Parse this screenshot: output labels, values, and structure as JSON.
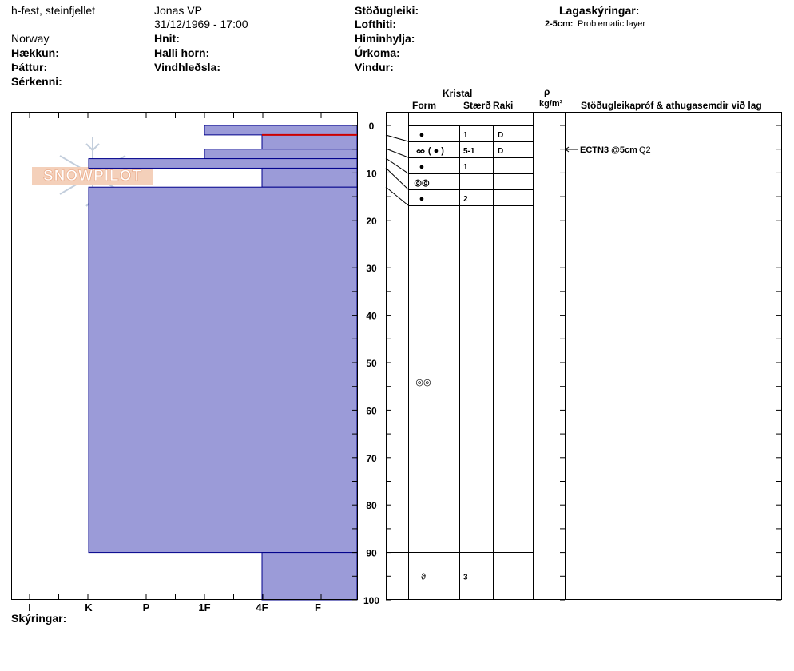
{
  "header": {
    "location": "h-fest, steinfjellet",
    "observer": "Jonas VP",
    "datetime": "31/12/1969 - 17:00",
    "country": "Norway",
    "labels": {
      "elevation": "Hækkun:",
      "aspect": "Þáttur:",
      "specifics": "Sérkenni:",
      "coords": "Hnit:",
      "slope_angle": "Halli horn:",
      "wind_loading": "Vindhleðsla:",
      "stability": "Stöðugleiki:",
      "air_temp": "Lofthiti:",
      "sky": "Himinhylja:",
      "precip": "Úrkoma:",
      "wind": "Vindur:",
      "layer_notes": "Lagaskýringar:"
    },
    "layer_note": {
      "depth": "2-5cm:",
      "text": "Problematic layer"
    }
  },
  "logo": {
    "text": "SNOWPILOT"
  },
  "columns": {
    "crystal": "Kristal",
    "form": "Form",
    "size": "Stærð",
    "moisture": "Raki",
    "rho": "ρ",
    "density_unit": "kg/m³",
    "stability_comments": "Stöðugleikapróf & athugasemdir við lag"
  },
  "legend_label": "Skýringar:",
  "test_result": {
    "label": "ECTN3 @5cm",
    "quality": "Q2"
  },
  "chart_data": {
    "type": "snow-profile",
    "y_axis": {
      "ticks": [
        0,
        10,
        20,
        30,
        40,
        50,
        60,
        70,
        80,
        90,
        100
      ],
      "range": [
        0,
        100
      ]
    },
    "x_axis": {
      "ticks": [
        "I",
        "K",
        "P",
        "1F",
        "4F",
        "F"
      ]
    },
    "hardness_layers": [
      {
        "top": 0,
        "bottom": 2,
        "hardness": "1F"
      },
      {
        "top": 2,
        "bottom": 5,
        "hardness": "4F"
      },
      {
        "top": 5,
        "bottom": 7,
        "hardness": "1F"
      },
      {
        "top": 7,
        "bottom": 9,
        "hardness": "K"
      },
      {
        "top": 9,
        "bottom": 13,
        "hardness": "4F"
      },
      {
        "top": 13,
        "bottom": 90,
        "hardness": "K"
      },
      {
        "top": 90,
        "bottom": 100,
        "hardness": "4F"
      }
    ],
    "weak_layer_depth": 2,
    "crystal_rows": [
      {
        "form": "●",
        "size": "1",
        "moisture": "D"
      },
      {
        "form": "ᨖ ( ● )",
        "size": "5-1",
        "moisture": "D"
      },
      {
        "form": "●",
        "size": "1",
        "moisture": ""
      },
      {
        "form": "◎◎",
        "size": "",
        "moisture": ""
      },
      {
        "form": "●",
        "size": "2",
        "moisture": ""
      }
    ],
    "lower_rows": [
      {
        "depth": 54,
        "form": "◎◎",
        "size": "",
        "moisture": ""
      },
      {
        "depth": 95,
        "form": "ϑ",
        "size": "3",
        "moisture": ""
      }
    ],
    "colors": {
      "fill": "#9b9bd8",
      "stroke": "#00008b",
      "weak": "#cc0000"
    }
  }
}
